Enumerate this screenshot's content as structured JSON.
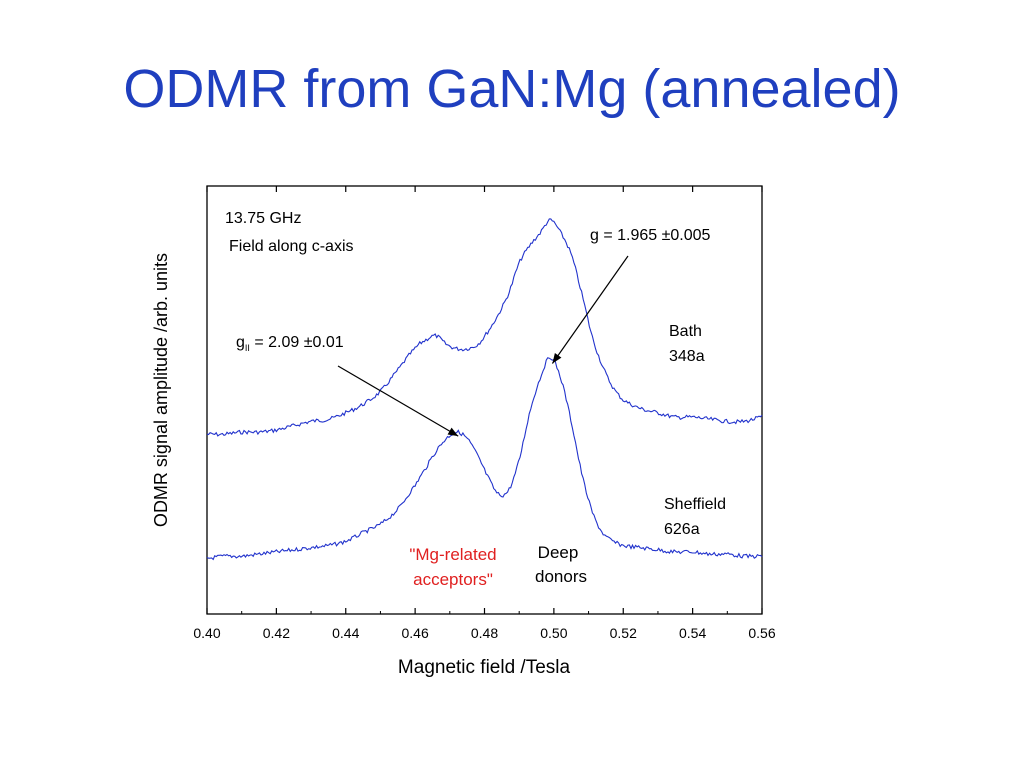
{
  "slide": {
    "title": "ODMR from GaN:Mg (annealed)",
    "title_color": "#1f3fbf"
  },
  "chart_data": {
    "type": "line",
    "title": "",
    "xlabel": "Magnetic field /Tesla",
    "ylabel": "ODMR signal amplitude /arb. units",
    "xlim": [
      0.4,
      0.56
    ],
    "ylim": [
      0,
      100
    ],
    "x_ticks": [
      0.4,
      0.42,
      0.44,
      0.46,
      0.48,
      0.5,
      0.52,
      0.54,
      0.56
    ],
    "x_tick_labels": [
      "0.40",
      "0.42",
      "0.44",
      "0.46",
      "0.48",
      "0.50",
      "0.52",
      "0.54",
      "0.56"
    ],
    "y_ticks_shown": false,
    "grid": false,
    "line_color": "#2233cc",
    "series": [
      {
        "name": "Bath 348a",
        "label_lines": [
          "Bath",
          "348a"
        ],
        "x": [
          0.4,
          0.405,
          0.41,
          0.415,
          0.42,
          0.425,
          0.43,
          0.435,
          0.44,
          0.445,
          0.45,
          0.455,
          0.46,
          0.463,
          0.466,
          0.469,
          0.472,
          0.475,
          0.478,
          0.481,
          0.484,
          0.487,
          0.49,
          0.493,
          0.496,
          0.499,
          0.502,
          0.505,
          0.508,
          0.511,
          0.514,
          0.517,
          0.52,
          0.525,
          0.53,
          0.535,
          0.54,
          0.545,
          0.55,
          0.555,
          0.56
        ],
        "values": [
          42,
          42,
          42.5,
          42.5,
          43,
          44,
          45,
          45.5,
          47,
          49,
          52,
          57,
          62,
          64,
          65,
          63,
          62,
          62,
          63,
          66,
          70,
          75,
          82,
          86,
          89,
          92,
          89,
          84,
          75,
          65,
          58,
          53,
          50,
          48,
          47,
          46,
          46,
          45.5,
          45,
          45,
          46
        ]
      },
      {
        "name": "Sheffield 626a",
        "label_lines": [
          "Sheffield",
          "626a"
        ],
        "x": [
          0.4,
          0.405,
          0.41,
          0.415,
          0.42,
          0.425,
          0.43,
          0.435,
          0.44,
          0.445,
          0.45,
          0.455,
          0.46,
          0.463,
          0.466,
          0.469,
          0.472,
          0.475,
          0.478,
          0.481,
          0.484,
          0.487,
          0.49,
          0.493,
          0.496,
          0.499,
          0.502,
          0.505,
          0.508,
          0.511,
          0.514,
          0.517,
          0.52,
          0.525,
          0.53,
          0.535,
          0.54,
          0.545,
          0.55,
          0.555,
          0.56
        ],
        "values": [
          13,
          13.5,
          13.5,
          14,
          14.5,
          15,
          15.5,
          16,
          17,
          19,
          21,
          24.5,
          30,
          34,
          38,
          41,
          42.5,
          41,
          37,
          32,
          28,
          29,
          36,
          47,
          55,
          60,
          55,
          45,
          33,
          24,
          19,
          17,
          16,
          15.5,
          15,
          14.5,
          14.5,
          14,
          14,
          13.5,
          13.5
        ]
      }
    ],
    "annotations": {
      "frequency": "13.75 GHz",
      "orientation": "Field along c-axis",
      "g_parallel": {
        "prefix": "g",
        "subscript": "II",
        "suffix": " = 2.09 ±0.01",
        "x": 0.473,
        "y": 42.5
      },
      "g_donor": {
        "text": "g = 1.965 ±0.005",
        "x": 0.499,
        "y": 59
      },
      "mg_label": {
        "lines": [
          "\"Mg-related",
          "acceptors\""
        ],
        "color": "#e02020"
      },
      "donor_label": {
        "lines": [
          "Deep",
          "donors"
        ]
      }
    }
  }
}
